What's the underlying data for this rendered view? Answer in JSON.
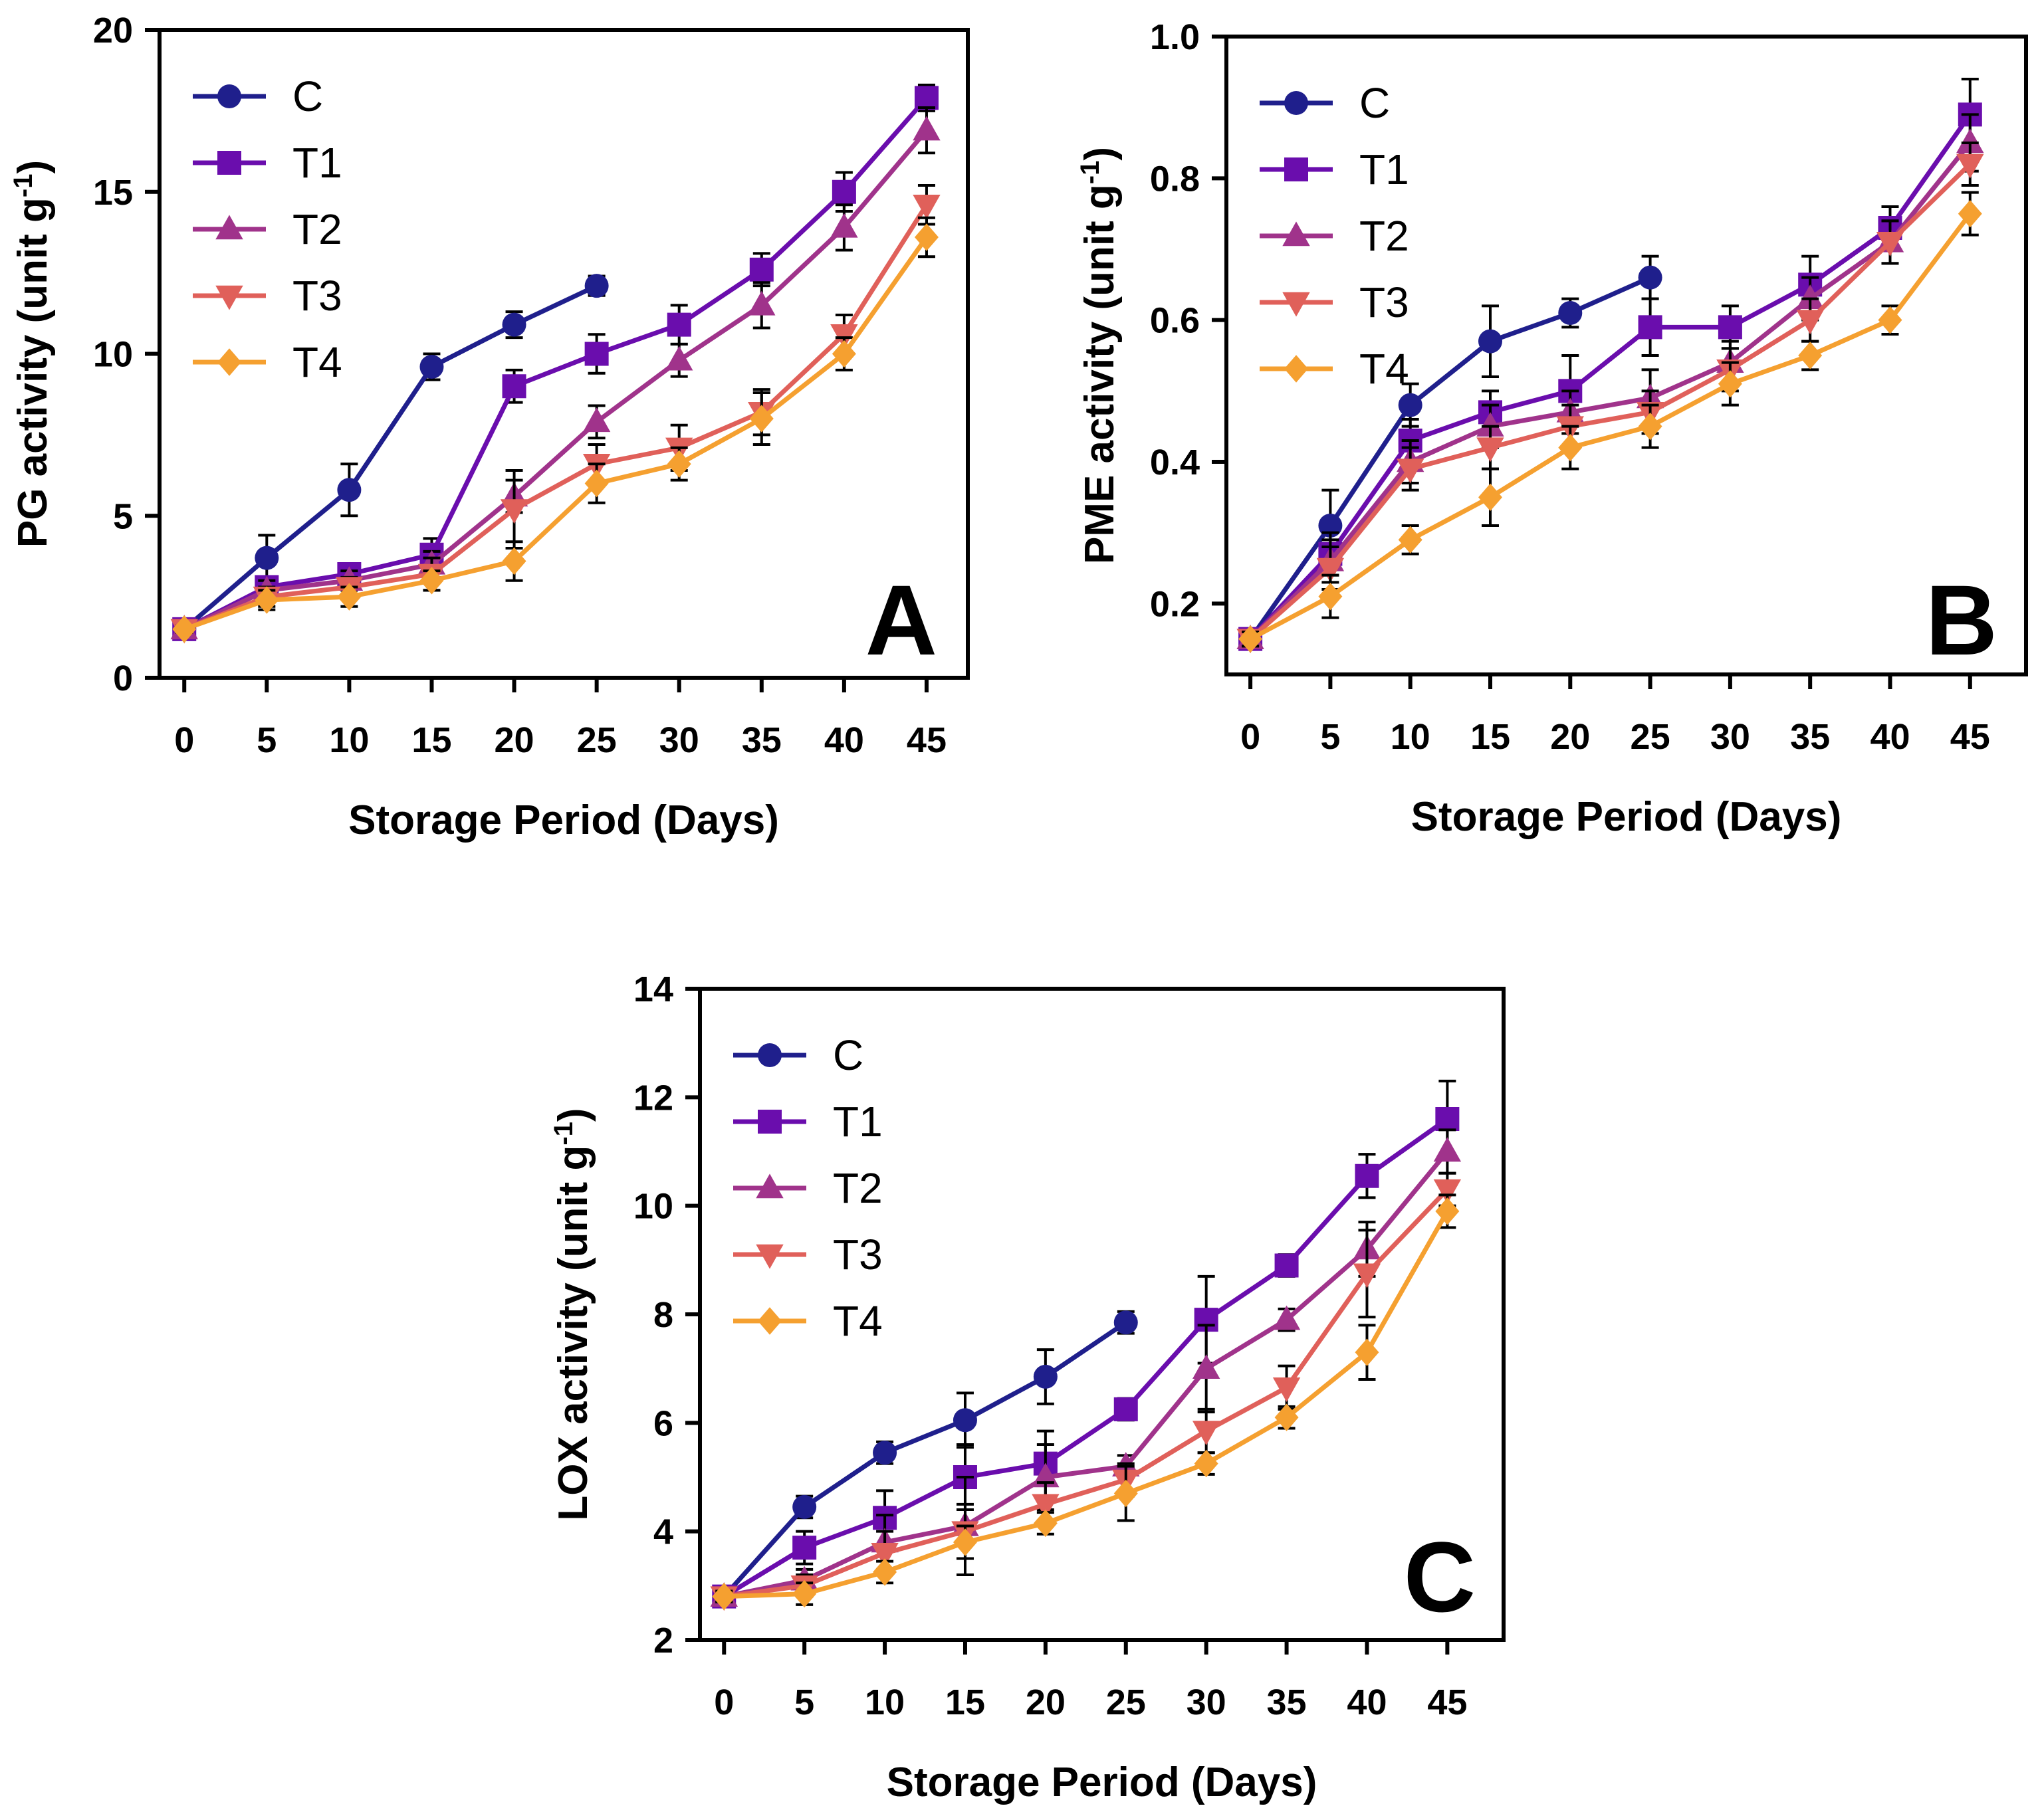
{
  "chart_data": [
    {
      "type": "line",
      "panel_letter": "A",
      "ylabel": "PG activity (unit g",
      "ylabel_sup": "-1",
      "ylabel_close": ")",
      "xlabel": "Storage Period (Days)",
      "x": [
        0,
        5,
        10,
        15,
        20,
        25,
        30,
        35,
        40,
        45
      ],
      "xlim": [
        -1.5,
        47.5
      ],
      "ylim": [
        0,
        20
      ],
      "yticks": [
        0,
        5,
        10,
        15,
        20
      ],
      "ytick_labels": [
        "0",
        "5",
        "10",
        "15",
        "20"
      ],
      "legend_position": "top-left",
      "series": [
        {
          "name": "C",
          "color": "#1f1f8c",
          "marker": "circle",
          "values": [
            1.5,
            3.7,
            5.8,
            9.6,
            10.9,
            12.1,
            null,
            null,
            null,
            null
          ],
          "errors": [
            0.1,
            0.7,
            0.8,
            0.4,
            0.4,
            0.3,
            null,
            null,
            null,
            null
          ]
        },
        {
          "name": "T1",
          "color": "#6a0dad",
          "marker": "square",
          "values": [
            1.5,
            2.8,
            3.2,
            3.8,
            9.0,
            10.0,
            10.9,
            12.6,
            15.0,
            17.9
          ],
          "errors": [
            0.1,
            0.3,
            0.3,
            0.5,
            0.5,
            0.6,
            0.6,
            0.5,
            0.6,
            0.4
          ]
        },
        {
          "name": "T2",
          "color": "#a0338b",
          "marker": "triangle-up",
          "values": [
            1.5,
            2.7,
            3.0,
            3.5,
            5.6,
            7.9,
            9.8,
            11.5,
            13.9,
            16.9
          ],
          "errors": [
            0.1,
            0.3,
            0.3,
            0.4,
            0.5,
            0.5,
            0.5,
            0.7,
            0.7,
            0.7
          ]
        },
        {
          "name": "T3",
          "color": "#e0605a",
          "marker": "triangle-down",
          "values": [
            1.5,
            2.5,
            2.8,
            3.2,
            5.2,
            6.6,
            7.1,
            8.2,
            10.6,
            14.6
          ],
          "errors": [
            0.1,
            0.3,
            0.3,
            0.5,
            1.2,
            0.6,
            0.7,
            0.7,
            0.6,
            0.6
          ]
        },
        {
          "name": "T4",
          "color": "#f5a030",
          "marker": "diamond",
          "values": [
            1.5,
            2.4,
            2.5,
            3.0,
            3.6,
            6.0,
            6.6,
            8.0,
            10.0,
            13.6
          ],
          "errors": [
            0.1,
            0.3,
            0.3,
            0.3,
            0.6,
            0.6,
            0.5,
            0.8,
            0.5,
            0.6
          ]
        }
      ]
    },
    {
      "type": "line",
      "panel_letter": "B",
      "ylabel": "PME activity (unit g",
      "ylabel_sup": "-1",
      "ylabel_close": ")",
      "xlabel": "Storage Period (Days)",
      "x": [
        0,
        5,
        10,
        15,
        20,
        25,
        30,
        35,
        40,
        45
      ],
      "xlim": [
        -1.5,
        48.5
      ],
      "ylim": [
        0.1,
        1.0
      ],
      "yticks": [
        0.2,
        0.4,
        0.6,
        0.8,
        1.0
      ],
      "ytick_labels": [
        "0.2",
        "0.4",
        "0.6",
        "0.8",
        "1.0"
      ],
      "legend_position": "top-left",
      "series": [
        {
          "name": "C",
          "color": "#1f1f8c",
          "marker": "circle",
          "values": [
            0.15,
            0.31,
            0.48,
            0.57,
            0.61,
            0.66,
            null,
            null,
            null,
            null
          ],
          "errors": [
            0.01,
            0.05,
            0.03,
            0.05,
            0.02,
            0.03,
            null,
            null,
            null,
            null
          ]
        },
        {
          "name": "T1",
          "color": "#6a0dad",
          "marker": "square",
          "values": [
            0.15,
            0.27,
            0.43,
            0.47,
            0.5,
            0.59,
            0.59,
            0.65,
            0.73,
            0.89
          ],
          "errors": [
            0.01,
            0.03,
            0.03,
            0.03,
            0.05,
            0.04,
            0.03,
            0.04,
            0.03,
            0.05
          ]
        },
        {
          "name": "T2",
          "color": "#a0338b",
          "marker": "triangle-up",
          "values": [
            0.15,
            0.26,
            0.4,
            0.45,
            0.47,
            0.49,
            0.54,
            0.63,
            0.71,
            0.85
          ],
          "errors": [
            0.01,
            0.03,
            0.03,
            0.03,
            0.03,
            0.04,
            0.03,
            0.03,
            0.03,
            0.04
          ]
        },
        {
          "name": "T3",
          "color": "#e0605a",
          "marker": "triangle-down",
          "values": [
            0.15,
            0.25,
            0.39,
            0.42,
            0.45,
            0.47,
            0.53,
            0.6,
            0.71,
            0.82
          ],
          "errors": [
            0.01,
            0.03,
            0.03,
            0.03,
            0.03,
            0.03,
            0.03,
            0.03,
            0.03,
            0.03
          ]
        },
        {
          "name": "T4",
          "color": "#f5a030",
          "marker": "diamond",
          "values": [
            0.15,
            0.21,
            0.29,
            0.35,
            0.42,
            0.45,
            0.51,
            0.55,
            0.6,
            0.75
          ],
          "errors": [
            0.01,
            0.03,
            0.02,
            0.04,
            0.03,
            0.03,
            0.03,
            0.02,
            0.02,
            0.03
          ]
        }
      ]
    },
    {
      "type": "line",
      "panel_letter": "C",
      "ylabel": "LOX activity (unit g",
      "ylabel_sup": "-1",
      "ylabel_close": ")",
      "xlabel": "Storage Period (Days)",
      "x": [
        0,
        5,
        10,
        15,
        20,
        25,
        30,
        35,
        40,
        45
      ],
      "xlim": [
        -1.5,
        48.5
      ],
      "ylim": [
        2,
        14
      ],
      "yticks": [
        2,
        4,
        6,
        8,
        10,
        12,
        14
      ],
      "ytick_labels": [
        "2",
        "4",
        "6",
        "8",
        "10",
        "12",
        "14"
      ],
      "legend_position": "top-left",
      "series": [
        {
          "name": "C",
          "color": "#1f1f8c",
          "marker": "circle",
          "values": [
            2.8,
            4.45,
            5.45,
            6.05,
            6.85,
            7.85,
            null,
            null,
            null,
            null
          ],
          "errors": [
            0.1,
            0.2,
            0.2,
            0.5,
            0.5,
            0.2,
            null,
            null,
            null,
            null
          ]
        },
        {
          "name": "T1",
          "color": "#6a0dad",
          "marker": "square",
          "values": [
            2.8,
            3.7,
            4.25,
            5.0,
            5.25,
            6.25,
            7.9,
            8.9,
            10.55,
            11.6
          ],
          "errors": [
            0.1,
            0.3,
            0.5,
            0.6,
            0.6,
            0.2,
            0.8,
            0.2,
            0.4,
            0.7
          ]
        },
        {
          "name": "T2",
          "color": "#a0338b",
          "marker": "triangle-up",
          "values": [
            2.8,
            3.1,
            3.8,
            4.1,
            5.0,
            5.2,
            7.0,
            7.9,
            9.2,
            11.0
          ],
          "errors": [
            0.1,
            0.2,
            0.5,
            0.9,
            0.6,
            0.2,
            0.8,
            0.2,
            0.5,
            0.4
          ]
        },
        {
          "name": "T3",
          "color": "#e0605a",
          "marker": "triangle-down",
          "values": [
            2.8,
            3.0,
            3.6,
            4.0,
            4.5,
            4.95,
            5.85,
            6.65,
            8.75,
            10.3
          ],
          "errors": [
            0.1,
            0.2,
            0.4,
            0.5,
            0.4,
            0.3,
            0.4,
            0.4,
            0.8,
            0.3
          ]
        },
        {
          "name": "T4",
          "color": "#f5a030",
          "marker": "diamond",
          "values": [
            2.8,
            2.85,
            3.25,
            3.8,
            4.15,
            4.7,
            5.25,
            6.1,
            7.3,
            9.9
          ],
          "errors": [
            0.1,
            0.2,
            0.2,
            0.3,
            0.2,
            0.5,
            0.2,
            0.2,
            0.5,
            0.3
          ]
        }
      ]
    }
  ]
}
